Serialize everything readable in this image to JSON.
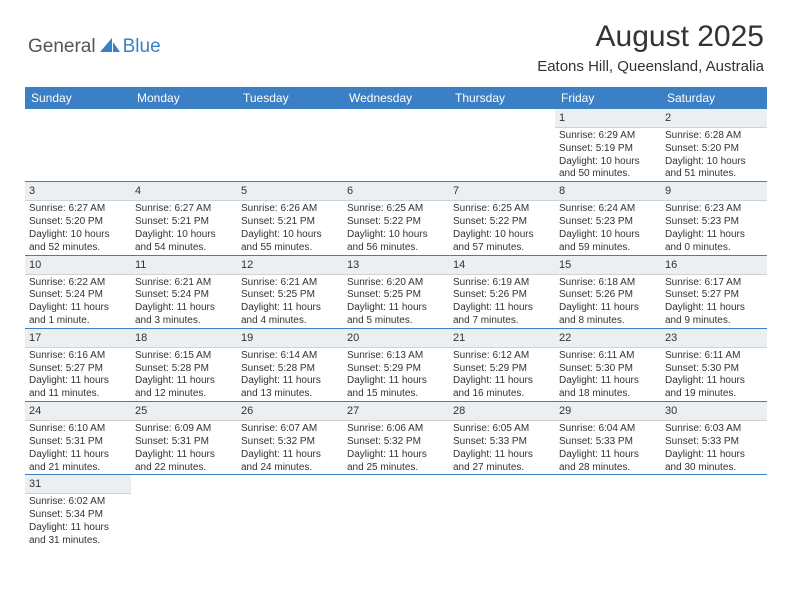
{
  "logo": {
    "general": "General",
    "blue": "Blue"
  },
  "title": "August 2025",
  "location": "Eatons Hill, Queensland, Australia",
  "dayHeaders": [
    "Sunday",
    "Monday",
    "Tuesday",
    "Wednesday",
    "Thursday",
    "Friday",
    "Saturday"
  ],
  "colors": {
    "headerBar": "#3b7fc4",
    "dayNumBg": "#eceff1",
    "weekBorder": "#3b7fc4",
    "text": "#333333"
  },
  "weeks": [
    [
      null,
      null,
      null,
      null,
      null,
      {
        "n": "1",
        "sr": "6:29 AM",
        "ss": "5:19 PM",
        "dl": "10 hours and 50 minutes."
      },
      {
        "n": "2",
        "sr": "6:28 AM",
        "ss": "5:20 PM",
        "dl": "10 hours and 51 minutes."
      }
    ],
    [
      {
        "n": "3",
        "sr": "6:27 AM",
        "ss": "5:20 PM",
        "dl": "10 hours and 52 minutes."
      },
      {
        "n": "4",
        "sr": "6:27 AM",
        "ss": "5:21 PM",
        "dl": "10 hours and 54 minutes."
      },
      {
        "n": "5",
        "sr": "6:26 AM",
        "ss": "5:21 PM",
        "dl": "10 hours and 55 minutes."
      },
      {
        "n": "6",
        "sr": "6:25 AM",
        "ss": "5:22 PM",
        "dl": "10 hours and 56 minutes."
      },
      {
        "n": "7",
        "sr": "6:25 AM",
        "ss": "5:22 PM",
        "dl": "10 hours and 57 minutes."
      },
      {
        "n": "8",
        "sr": "6:24 AM",
        "ss": "5:23 PM",
        "dl": "10 hours and 59 minutes."
      },
      {
        "n": "9",
        "sr": "6:23 AM",
        "ss": "5:23 PM",
        "dl": "11 hours and 0 minutes."
      }
    ],
    [
      {
        "n": "10",
        "sr": "6:22 AM",
        "ss": "5:24 PM",
        "dl": "11 hours and 1 minute."
      },
      {
        "n": "11",
        "sr": "6:21 AM",
        "ss": "5:24 PM",
        "dl": "11 hours and 3 minutes."
      },
      {
        "n": "12",
        "sr": "6:21 AM",
        "ss": "5:25 PM",
        "dl": "11 hours and 4 minutes."
      },
      {
        "n": "13",
        "sr": "6:20 AM",
        "ss": "5:25 PM",
        "dl": "11 hours and 5 minutes."
      },
      {
        "n": "14",
        "sr": "6:19 AM",
        "ss": "5:26 PM",
        "dl": "11 hours and 7 minutes."
      },
      {
        "n": "15",
        "sr": "6:18 AM",
        "ss": "5:26 PM",
        "dl": "11 hours and 8 minutes."
      },
      {
        "n": "16",
        "sr": "6:17 AM",
        "ss": "5:27 PM",
        "dl": "11 hours and 9 minutes."
      }
    ],
    [
      {
        "n": "17",
        "sr": "6:16 AM",
        "ss": "5:27 PM",
        "dl": "11 hours and 11 minutes."
      },
      {
        "n": "18",
        "sr": "6:15 AM",
        "ss": "5:28 PM",
        "dl": "11 hours and 12 minutes."
      },
      {
        "n": "19",
        "sr": "6:14 AM",
        "ss": "5:28 PM",
        "dl": "11 hours and 13 minutes."
      },
      {
        "n": "20",
        "sr": "6:13 AM",
        "ss": "5:29 PM",
        "dl": "11 hours and 15 minutes."
      },
      {
        "n": "21",
        "sr": "6:12 AM",
        "ss": "5:29 PM",
        "dl": "11 hours and 16 minutes."
      },
      {
        "n": "22",
        "sr": "6:11 AM",
        "ss": "5:30 PM",
        "dl": "11 hours and 18 minutes."
      },
      {
        "n": "23",
        "sr": "6:11 AM",
        "ss": "5:30 PM",
        "dl": "11 hours and 19 minutes."
      }
    ],
    [
      {
        "n": "24",
        "sr": "6:10 AM",
        "ss": "5:31 PM",
        "dl": "11 hours and 21 minutes."
      },
      {
        "n": "25",
        "sr": "6:09 AM",
        "ss": "5:31 PM",
        "dl": "11 hours and 22 minutes."
      },
      {
        "n": "26",
        "sr": "6:07 AM",
        "ss": "5:32 PM",
        "dl": "11 hours and 24 minutes."
      },
      {
        "n": "27",
        "sr": "6:06 AM",
        "ss": "5:32 PM",
        "dl": "11 hours and 25 minutes."
      },
      {
        "n": "28",
        "sr": "6:05 AM",
        "ss": "5:33 PM",
        "dl": "11 hours and 27 minutes."
      },
      {
        "n": "29",
        "sr": "6:04 AM",
        "ss": "5:33 PM",
        "dl": "11 hours and 28 minutes."
      },
      {
        "n": "30",
        "sr": "6:03 AM",
        "ss": "5:33 PM",
        "dl": "11 hours and 30 minutes."
      }
    ],
    [
      {
        "n": "31",
        "sr": "6:02 AM",
        "ss": "5:34 PM",
        "dl": "11 hours and 31 minutes."
      },
      null,
      null,
      null,
      null,
      null,
      null
    ]
  ],
  "labels": {
    "sunrise": "Sunrise:",
    "sunset": "Sunset:",
    "daylight": "Daylight:"
  }
}
